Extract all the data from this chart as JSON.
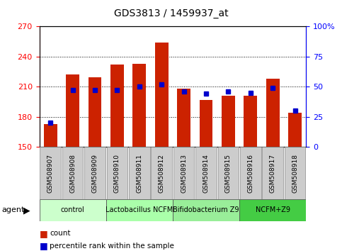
{
  "title": "GDS3813 / 1459937_at",
  "samples": [
    "GSM508907",
    "GSM508908",
    "GSM508909",
    "GSM508910",
    "GSM508911",
    "GSM508912",
    "GSM508913",
    "GSM508914",
    "GSM508915",
    "GSM508916",
    "GSM508917",
    "GSM508918"
  ],
  "bar_base": 150,
  "counts": [
    173,
    222,
    219,
    232,
    233,
    254,
    208,
    197,
    201,
    201,
    218,
    184
  ],
  "percentile_ranks": [
    20,
    47,
    47,
    47,
    50,
    52,
    46,
    44,
    46,
    45,
    49,
    30
  ],
  "bar_color": "#cc2200",
  "pct_color": "#0000cc",
  "ylim_left": [
    150,
    270
  ],
  "ylim_right": [
    0,
    100
  ],
  "yticks_left": [
    150,
    180,
    210,
    240,
    270
  ],
  "yticks_right": [
    0,
    25,
    50,
    75,
    100
  ],
  "ytick_labels_right": [
    "0",
    "25",
    "50",
    "75",
    "100%"
  ],
  "gridlines": [
    180,
    210,
    240
  ],
  "groups": [
    {
      "label": "control",
      "start": 0,
      "end": 3,
      "color": "#ccffcc"
    },
    {
      "label": "Lactobacillus NCFM",
      "start": 3,
      "end": 6,
      "color": "#aaffaa"
    },
    {
      "label": "Bifidobacterium Z9",
      "start": 6,
      "end": 9,
      "color": "#99ee99"
    },
    {
      "label": "NCFM+Z9",
      "start": 9,
      "end": 12,
      "color": "#44cc44"
    }
  ],
  "agent_label": "agent",
  "legend_count_label": "count",
  "legend_pct_label": "percentile rank within the sample",
  "bar_box_color": "#cccccc",
  "bar_box_edge": "#888888",
  "fig_width": 4.83,
  "fig_height": 3.54,
  "dpi": 100
}
